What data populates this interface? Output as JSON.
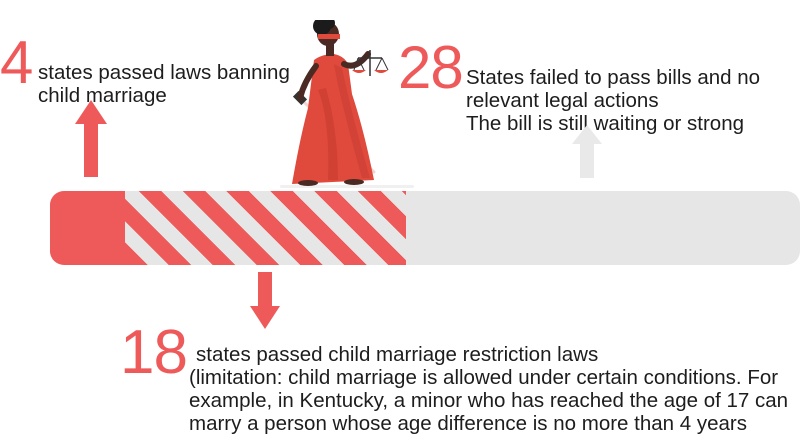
{
  "groups": {
    "banned": {
      "number": "4",
      "lines": [
        "states passed laws banning",
        "child marriage"
      ]
    },
    "failed": {
      "number": "28",
      "lines": [
        "States failed to pass bills and no",
        "relevant legal actions",
        "The bill is still waiting or strong"
      ]
    },
    "restricted": {
      "number": "18",
      "lines": [
        "states passed child marriage restriction laws",
        "(limitation: child marriage is allowed under certain conditions. For",
        "example, in Kentucky, a minor who has reached the age of 17 can",
        "marry a person whose age difference is no more than 4 years"
      ]
    }
  },
  "progress": {
    "banned_states": 4,
    "restricted_states": 18,
    "failed_states": 28,
    "total_states": 50
  },
  "colors": {
    "accent": "#ee5a5a",
    "track": "#e6e6e6",
    "arrow_muted": "#e9e9e9",
    "text": "#1d1d1d"
  },
  "icons": {
    "illustration": "lady-justice-icon",
    "arrow_up": "arrow-up-icon",
    "arrow_down": "arrow-down-icon"
  }
}
